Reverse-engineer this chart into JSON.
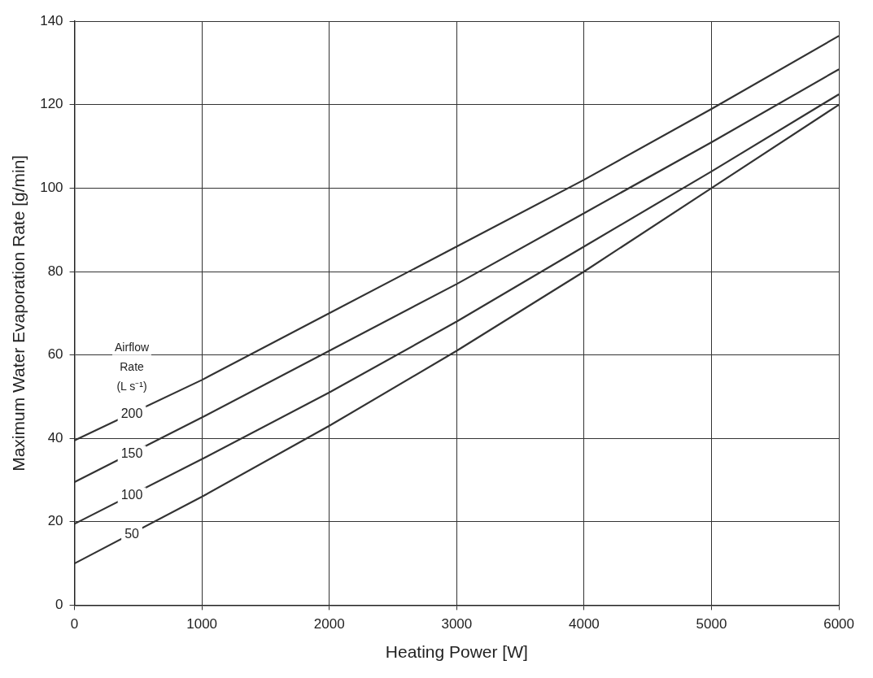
{
  "chart_data": {
    "type": "line",
    "xlabel": "Heating Power [W]",
    "ylabel": "Maximum Water Evaporation Rate [g/min]",
    "legend_title": "Airflow Rate (L s⁻¹)",
    "x": [
      0,
      1000,
      2000,
      3000,
      4000,
      5000,
      6000
    ],
    "series": [
      {
        "name": "200",
        "color": "#333333",
        "values": [
          39.5,
          54,
          70,
          86,
          102,
          119,
          136.5
        ]
      },
      {
        "name": "150",
        "color": "#333333",
        "values": [
          29.5,
          45,
          61,
          77,
          94,
          111,
          128.5
        ]
      },
      {
        "name": "100",
        "color": "#333333",
        "values": [
          19.5,
          35,
          51,
          68,
          86,
          104,
          122.5
        ]
      },
      {
        "name": "50",
        "color": "#333333",
        "values": [
          10,
          26,
          43,
          61,
          80,
          100,
          120
        ]
      }
    ],
    "xlim": [
      0,
      6000
    ],
    "xticks": [
      0,
      1000,
      2000,
      3000,
      4000,
      5000,
      6000
    ],
    "ylim": [
      0,
      140
    ],
    "yticks": [
      0,
      20,
      40,
      60,
      80,
      100,
      120,
      140
    ],
    "grid": true,
    "marker": "none",
    "line_style": "solid",
    "legend": false
  }
}
